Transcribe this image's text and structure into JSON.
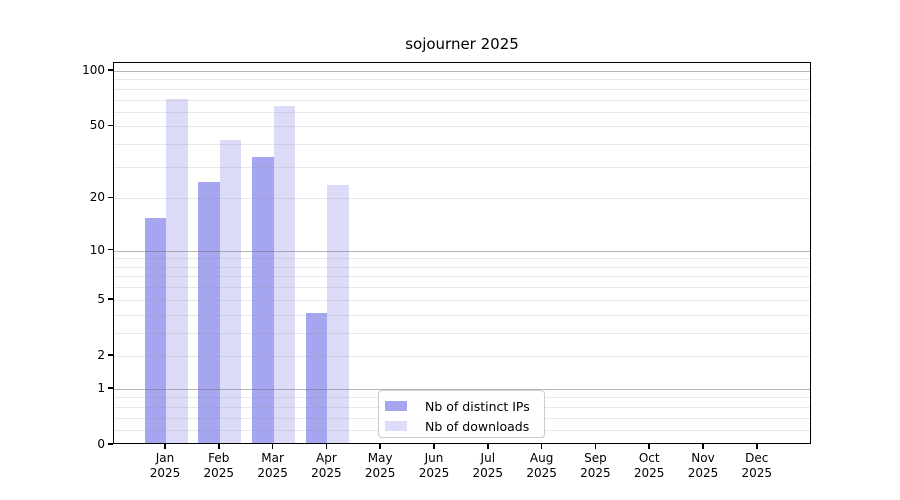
{
  "chart_data": {
    "type": "bar",
    "title": "sojourner 2025",
    "xlabel": "",
    "ylabel": "",
    "categories": [
      "Jan",
      "Feb",
      "Mar",
      "Apr",
      "May",
      "Jun",
      "Jul",
      "Aug",
      "Sep",
      "Oct",
      "Nov",
      "Dec"
    ],
    "x_year_label": "2025",
    "series": [
      {
        "name": "Nb of distinct IPs",
        "color": "#a5a5f0",
        "values": [
          15,
          24,
          33,
          4,
          0,
          0,
          0,
          0,
          0,
          0,
          0,
          0
        ]
      },
      {
        "name": "Nb of downloads",
        "color": "#dcdcf9",
        "values": [
          69,
          41,
          63,
          23,
          0,
          0,
          0,
          0,
          0,
          0,
          0,
          0
        ]
      }
    ],
    "yscale": "log(1+x)",
    "ylim": [
      0,
      100
    ],
    "yticks": [
      0,
      1,
      2,
      5,
      10,
      20,
      50,
      100
    ],
    "major_grid_values": [
      1,
      10,
      100
    ],
    "minor_grid_values": [
      0.2,
      0.4,
      0.6,
      0.8,
      2,
      3,
      4,
      5,
      6,
      7,
      8,
      9,
      20,
      30,
      40,
      50,
      60,
      70,
      80,
      90
    ],
    "grid": "on",
    "legend_position": "lower center",
    "colors": {
      "background": "#ffffff",
      "spine": "#000000",
      "major_grid": "#b9b9b9",
      "minor_grid": "#e7e7e7",
      "legend_border": "#cccccc",
      "text": "#000000"
    }
  }
}
